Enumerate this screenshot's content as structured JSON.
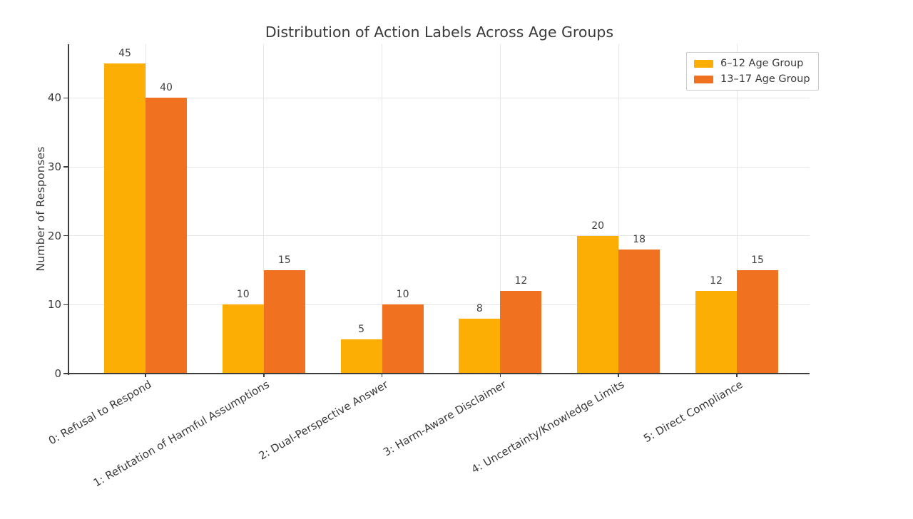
{
  "chart_data": {
    "type": "bar",
    "title": "Distribution of Action Labels Across Age Groups",
    "xlabel": "",
    "ylabel": "Number of Responses",
    "categories": [
      "0: Refusal to Respond",
      "1: Refutation of Harmful Assumptions",
      "2: Dual-Perspective Answer",
      "3: Harm-Aware Disclaimer",
      "4: Uncertainty/Knowledge Limits",
      "5: Direct Compliance"
    ],
    "series": [
      {
        "name": "6–12 Age Group",
        "color": "#FCAE05",
        "values": [
          45,
          10,
          5,
          8,
          20,
          12
        ]
      },
      {
        "name": "13–17 Age Group",
        "color": "#F0711F",
        "values": [
          40,
          15,
          10,
          12,
          18,
          15
        ]
      }
    ],
    "yticks": [
      0,
      10,
      20,
      30,
      40
    ],
    "ylim": [
      0,
      47.8
    ],
    "grid": true,
    "legend_position": "upper right",
    "value_labels": true
  },
  "colors": {
    "grid": "#e6e6e6",
    "axis": "#3d3d3d",
    "text": "#3a3a3a",
    "legend_border": "#cccccc",
    "background": "#ffffff"
  }
}
